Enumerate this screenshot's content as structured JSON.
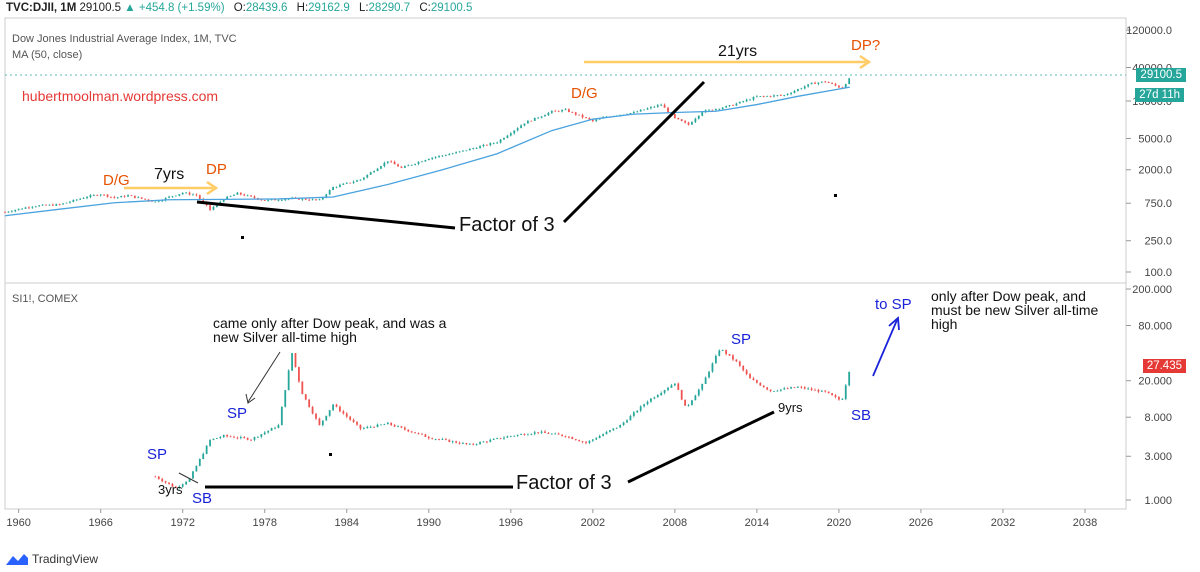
{
  "header": {
    "symbol": "TVC:DJII, 1M",
    "last": "29100.5",
    "change": "▲ +454.8 (+1.59%)",
    "open_label": "O:",
    "open": "28439.6",
    "high_label": "H:",
    "high": "29162.9",
    "low_label": "L:",
    "low": "28290.7",
    "close_label": "C:",
    "close": "29100.5"
  },
  "top_pane": {
    "title": "Dow Jones Industrial Average Index, 1M, TVC",
    "subtitle": "MA (50, close)",
    "watermark": "hubertmoolman.wordpress.com",
    "price_tag": "29100.5",
    "countdown_tag": "27d 11h",
    "annotations": {
      "dg1": "D/G",
      "yrs7": "7yrs",
      "dp1": "DP",
      "dg2": "D/G",
      "yrs21": "21yrs",
      "dp2": "DP?",
      "factor": "Factor of 3"
    }
  },
  "bottom_pane": {
    "title": "SI1!, COMEX",
    "price_tag": "27.435",
    "annotations": {
      "sp1": "SP",
      "yrs3": "3yrs",
      "sb1": "SB",
      "sp2": "SP",
      "note1": "came only after Dow peak, and was a new Silver all-time high",
      "sp3": "SP",
      "yrs9": "9yrs",
      "sb2": "SB",
      "tosp": "to SP",
      "note2": "only after Dow peak, and must be new Silver all-time high",
      "factor": "Factor of 3"
    }
  },
  "footer": {
    "brand": "TradingView"
  },
  "colors": {
    "up": "#26a69a",
    "down": "#ef5350",
    "ma": "#4aa3df",
    "orange": "#e65100",
    "blue": "#1a23d8",
    "arrow": "#ffcc66"
  },
  "chart_data": [
    {
      "type": "line",
      "title": "Dow Jones Industrial Average Index, 1M, TVC",
      "log_scale": true,
      "y_ticks": [
        "120000.0",
        "40000.0",
        "15000.0",
        "5000.0",
        "2000.0",
        "750.0",
        "250.0",
        "100.0"
      ],
      "x_ticks": [
        "1960",
        "1966",
        "1972",
        "1978",
        "1984",
        "1990",
        "1996",
        "2002",
        "2008",
        "2014",
        "2020",
        "2026",
        "2032",
        "2038"
      ],
      "series": [
        {
          "name": "Dow Jones",
          "x": [
            1959,
            1961,
            1963,
            1965,
            1966,
            1967,
            1968,
            1970,
            1971,
            1972,
            1973,
            1974,
            1975,
            1976,
            1978,
            1980,
            1982,
            1983,
            1985,
            1987,
            1988,
            1990,
            1992,
            1995,
            1997,
            1999,
            2000,
            2002,
            2003,
            2005,
            2007,
            2008,
            2009,
            2010,
            2012,
            2014,
            2016,
            2018,
            2019,
            2020.2,
            2020.8
          ],
          "y": [
            580,
            690,
            720,
            910,
            980,
            880,
            940,
            780,
            900,
            1020,
            950,
            620,
            850,
            1000,
            810,
            860,
            820,
            1200,
            1500,
            2600,
            2100,
            2800,
            3300,
            4500,
            7900,
            11000,
            11500,
            8300,
            9500,
            10700,
            13500,
            9000,
            7500,
            11000,
            13000,
            17000,
            17800,
            25000,
            26500,
            21900,
            29100.5
          ]
        },
        {
          "name": "MA (50, close)",
          "x": [
            1959,
            1963,
            1967,
            1971,
            1975,
            1979,
            1983,
            1987,
            1991,
            1995,
            1999,
            2002,
            2005,
            2008,
            2011,
            2014,
            2017,
            2020.8
          ],
          "y": [
            520,
            630,
            760,
            830,
            840,
            850,
            900,
            1300,
            2000,
            3200,
            6300,
            8800,
            10200,
            10700,
            11100,
            13500,
            17200,
            22500
          ]
        }
      ]
    },
    {
      "type": "line",
      "title": "SI1!, COMEX",
      "log_scale": true,
      "y_ticks": [
        "200.000",
        "80.000",
        "20.000",
        "8.000",
        "3.000",
        "1.000"
      ],
      "x_ticks": [
        "1960",
        "1966",
        "1972",
        "1978",
        "1984",
        "1990",
        "1996",
        "2002",
        "2008",
        "2014",
        "2020",
        "2026",
        "2032",
        "2038"
      ],
      "series": [
        {
          "name": "Silver",
          "x": [
            1970,
            1971.5,
            1972.5,
            1974,
            1975,
            1977,
            1979,
            1980,
            1980.7,
            1982,
            1983,
            1985,
            1987,
            1990,
            1993,
            1996,
            1998,
            2000,
            2001.5,
            2004,
            2006,
            2008,
            2008.8,
            2010,
            2011.3,
            2012.5,
            2013.5,
            2015,
            2017,
            2019,
            2020.2,
            2020.8
          ],
          "y": [
            1.8,
            1.35,
            1.7,
            4.5,
            5.0,
            4.6,
            6.5,
            40,
            15,
            6.5,
            11,
            6.0,
            6.8,
            4.8,
            4.0,
            5.0,
            5.5,
            5.0,
            4.2,
            6.5,
            12,
            19,
            10,
            18,
            45,
            32,
            21,
            15.5,
            17,
            15,
            12,
            27.435
          ]
        }
      ]
    }
  ]
}
